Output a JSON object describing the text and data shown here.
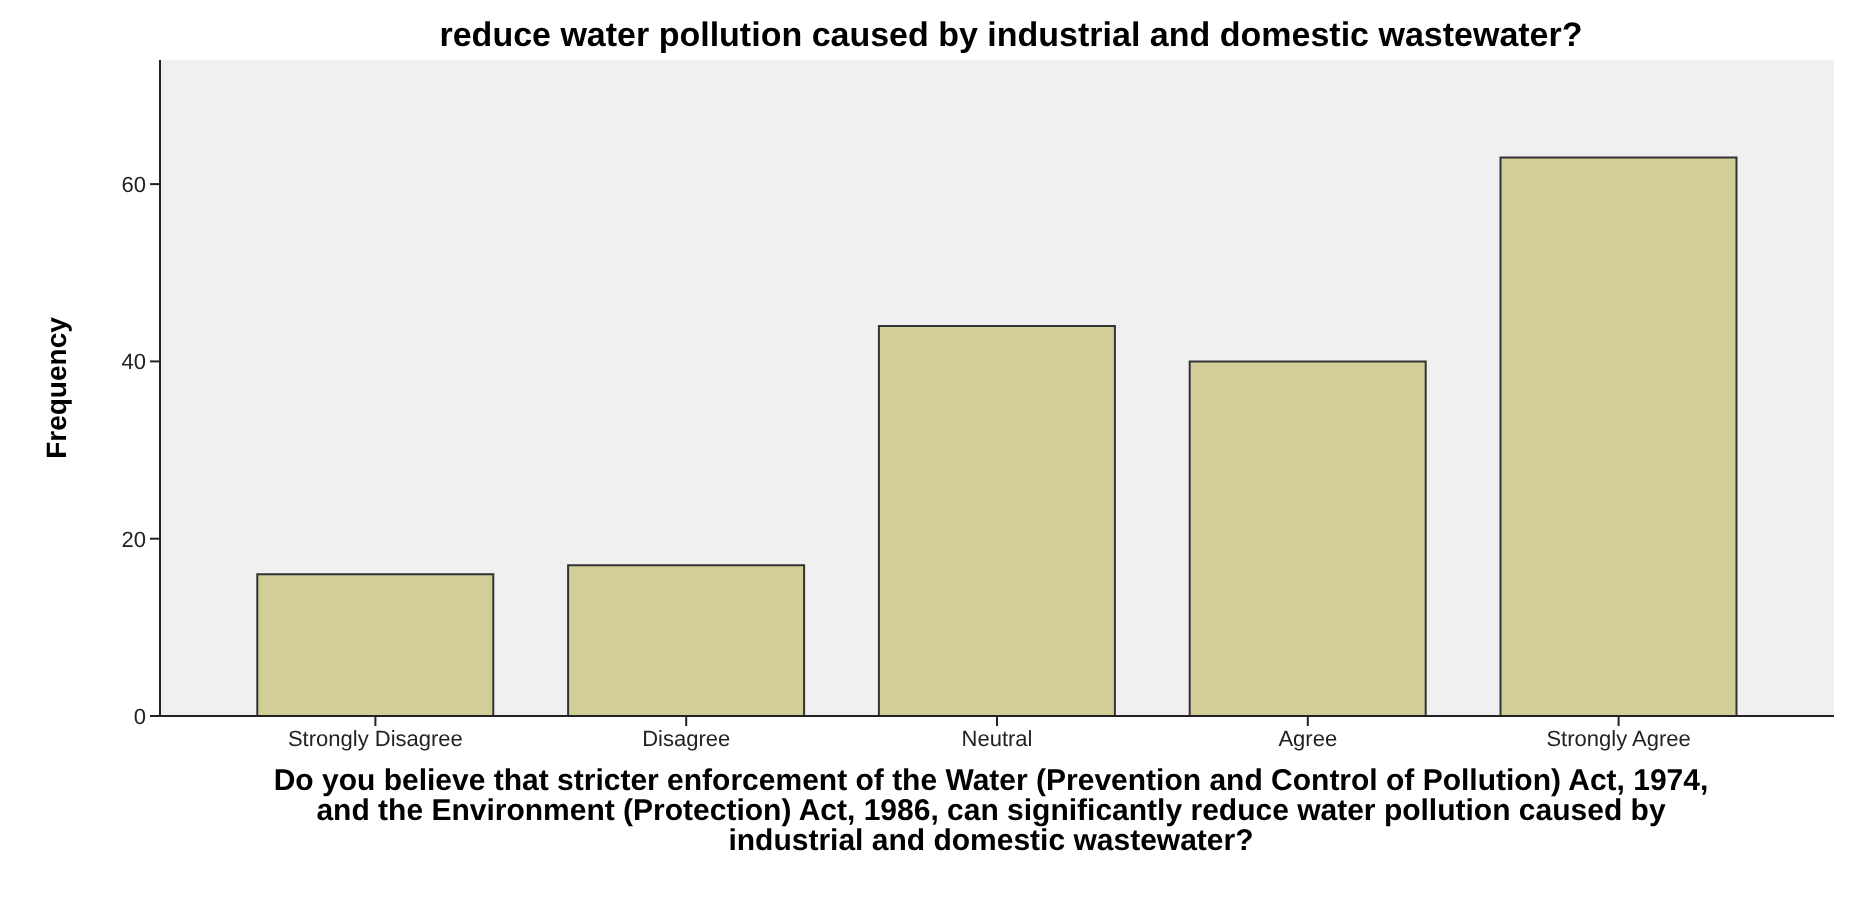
{
  "chart_data": {
    "type": "bar",
    "title": "reduce water pollution caused by industrial and domestic wastewater?",
    "xlabel": "Do you believe that stricter enforcement of the Water (Prevention and Control of Pollution) Act, 1974, and the Environment (Protection) Act, 1986, can significantly reduce water pollution caused by industrial and domestic wastewater?",
    "ylabel": "Frequency",
    "categories": [
      "Strongly Disagree",
      "Disagree",
      "Neutral",
      "Agree",
      "Strongly Agree"
    ],
    "values": [
      16,
      17,
      44,
      40,
      63
    ],
    "color": "#d3ce97",
    "ylim": [
      0,
      74
    ],
    "yticks": [
      0,
      20,
      40,
      60
    ],
    "grid": false
  }
}
